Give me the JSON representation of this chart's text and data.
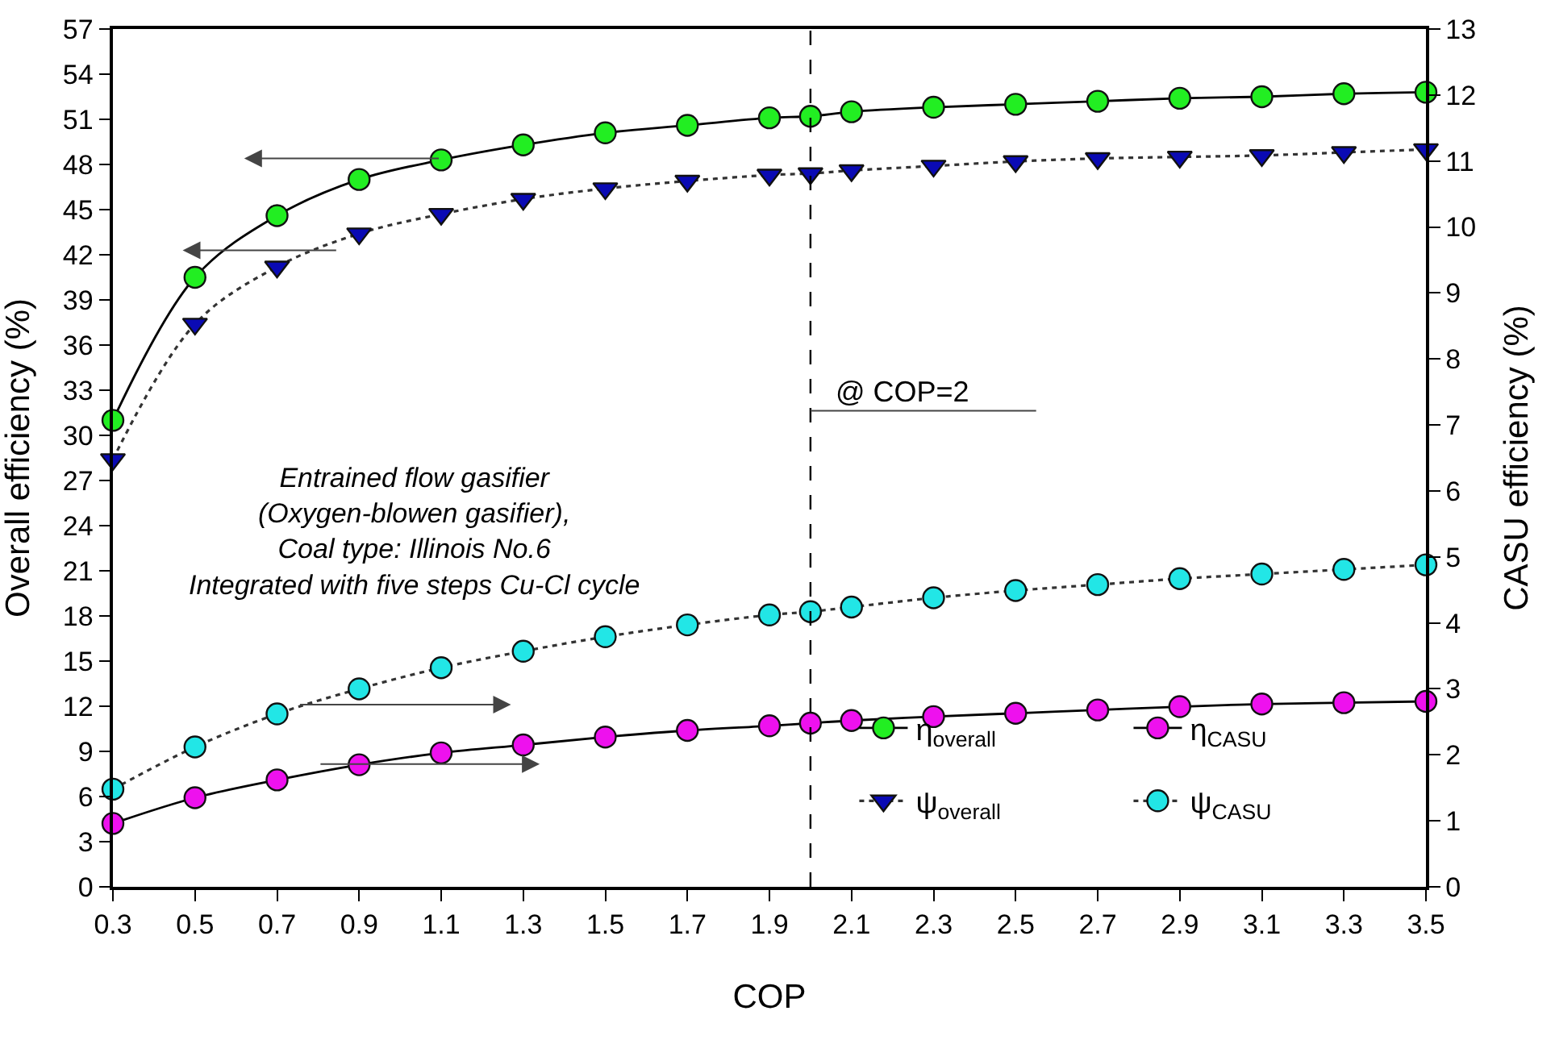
{
  "chart_data": {
    "type": "line",
    "xlabel": "COP",
    "ylabel": "Overall efficiency (%)",
    "y2label": "CASU efficiency (%)",
    "x": [
      0.3,
      0.5,
      0.7,
      0.9,
      1.1,
      1.3,
      1.5,
      1.7,
      1.9,
      2.0,
      2.1,
      2.3,
      2.5,
      2.7,
      2.9,
      3.1,
      3.3,
      3.5
    ],
    "series": [
      {
        "name": "η$_{overall}$",
        "color": "#22ee22",
        "marker": "circle",
        "line_style": "solid",
        "values": [
          31.0,
          40.5,
          44.6,
          47.0,
          48.3,
          49.3,
          50.1,
          50.6,
          51.1,
          51.2,
          51.5,
          51.8,
          52.0,
          52.2,
          52.4,
          52.5,
          52.7,
          52.8
        ]
      },
      {
        "name": "η$_{CASU}$",
        "color": "#ee11ee",
        "marker": "circle",
        "line_style": "solid",
        "axis": "y2",
        "values": [
          0.96,
          1.35,
          1.62,
          1.85,
          2.03,
          2.15,
          2.27,
          2.37,
          2.44,
          2.48,
          2.52,
          2.58,
          2.63,
          2.68,
          2.73,
          2.77,
          2.79,
          2.81
        ]
      },
      {
        "name": "ψ$_{overall}$",
        "color": "#0a0ab4",
        "marker": "triangle",
        "line_style": "dotted",
        "values": [
          28.4,
          37.4,
          41.2,
          43.4,
          44.7,
          45.7,
          46.4,
          46.9,
          47.3,
          47.4,
          47.6,
          47.9,
          48.2,
          48.4,
          48.5,
          48.6,
          48.8,
          49.0
        ]
      },
      {
        "name": "ψ$_{CASU}$",
        "color": "#22e6e6",
        "marker": "circle",
        "line_style": "dotted",
        "axis": "y2",
        "values": [
          1.48,
          2.12,
          2.62,
          3.0,
          3.32,
          3.57,
          3.79,
          3.97,
          4.12,
          4.17,
          4.24,
          4.38,
          4.49,
          4.58,
          4.67,
          4.74,
          4.81,
          4.88
        ]
      }
    ],
    "xlim": [
      0.3,
      3.5
    ],
    "xticks": [
      0.3,
      0.5,
      0.7,
      0.9,
      1.1,
      1.3,
      1.5,
      1.7,
      1.9,
      2.1,
      2.3,
      2.5,
      2.7,
      2.9,
      3.1,
      3.3,
      3.5
    ],
    "ylim": [
      0,
      57
    ],
    "yticks": [
      0,
      3,
      6,
      9,
      12,
      15,
      18,
      21,
      24,
      27,
      30,
      33,
      36,
      39,
      42,
      45,
      48,
      51,
      54,
      57
    ],
    "y2lim": [
      0,
      13
    ],
    "y2ticks": [
      0,
      1,
      2,
      3,
      4,
      5,
      6,
      7,
      8,
      9,
      10,
      11,
      12,
      13
    ],
    "ref_lines": [
      {
        "axis": "x",
        "value": 2.0,
        "label": "@ COP=2",
        "line_style": "dashed",
        "color": "#000000"
      }
    ],
    "annotations": [
      "Entrained flow gasifier\n(Oxygen-blowen gasifier),\nCoal type: Illinois No.6\nIntegrated with five steps Cu-Cl cycle"
    ],
    "grid": false,
    "legend": "bottom right"
  }
}
